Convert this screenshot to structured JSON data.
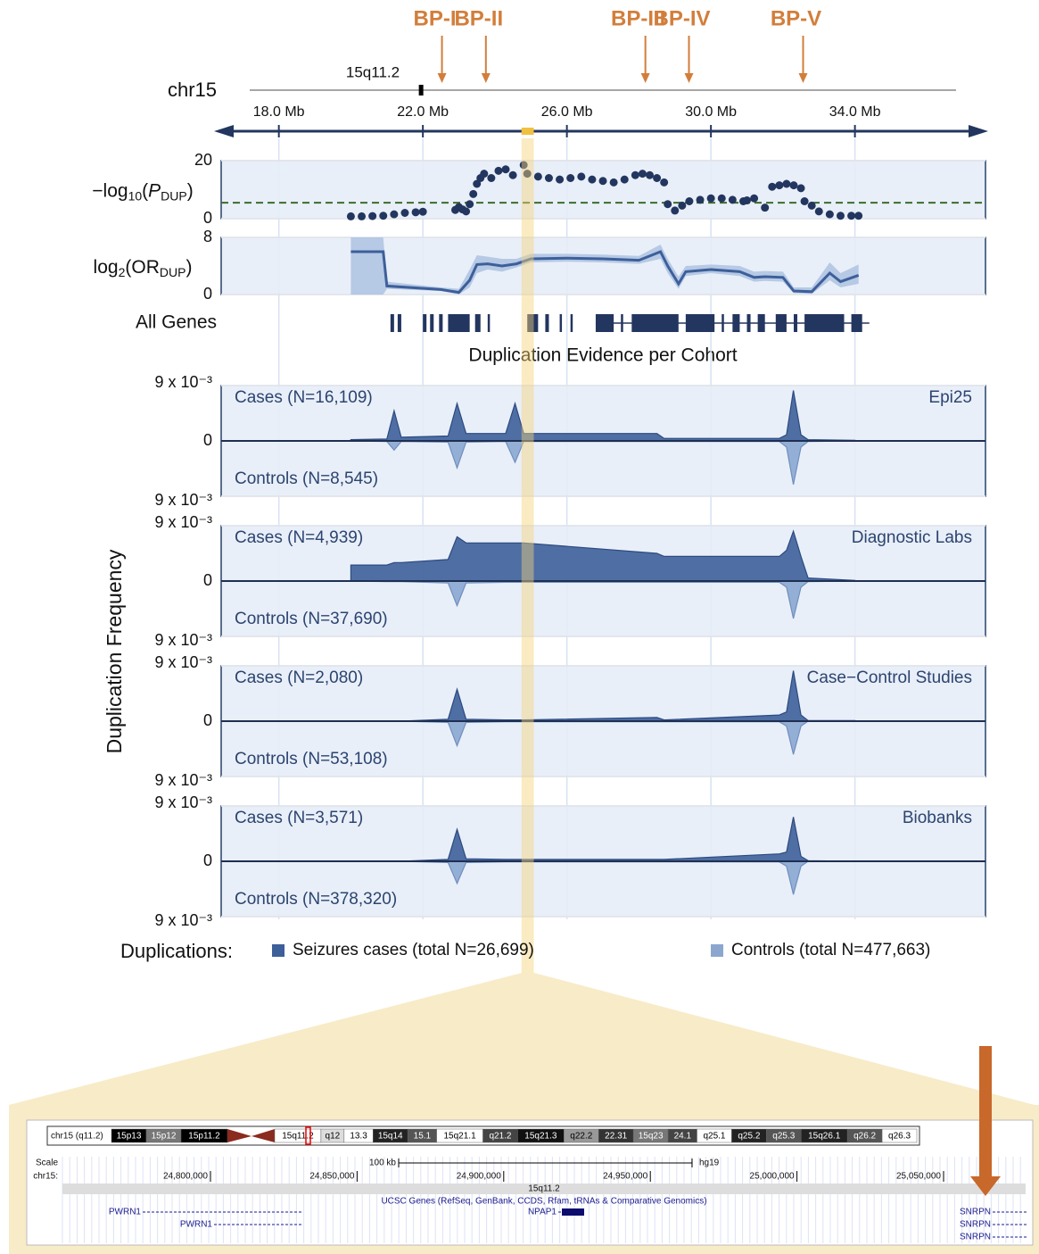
{
  "genome_axis": {
    "chrom": "chr15",
    "band": "15q11.2",
    "centromere": 21.95,
    "xlim": [
      16.2,
      37.7
    ],
    "xticks": [
      {
        "value": 18,
        "label": "18.0 Mb"
      },
      {
        "value": 22,
        "label": "22.0 Mb"
      },
      {
        "value": 26,
        "label": "26.0 Mb"
      },
      {
        "value": 30,
        "label": "30.0 Mb"
      },
      {
        "value": 34,
        "label": "34.0 Mb"
      }
    ],
    "highlight": [
      24.74,
      25.08
    ],
    "color": "#23365f"
  },
  "breakpoints": {
    "color": "#d27e3b",
    "items": [
      {
        "label": "BP-I",
        "position": 22.53
      },
      {
        "label": "BP-II",
        "position": 23.75
      },
      {
        "label": "BP-III",
        "position": 28.18
      },
      {
        "label": "BP-IV",
        "position": 29.39
      },
      {
        "label": "BP-V",
        "position": 32.56
      }
    ]
  },
  "genes": {
    "label": "All Genes",
    "color": "#23365f",
    "intervals": [
      [
        21.1,
        21.2
      ],
      [
        21.3,
        21.4
      ],
      [
        22.0,
        22.1
      ],
      [
        22.2,
        22.3
      ],
      [
        22.45,
        22.55
      ],
      [
        22.7,
        23.3
      ],
      [
        23.45,
        23.6
      ],
      [
        23.8,
        23.85
      ],
      [
        24.9,
        25.2
      ],
      [
        25.4,
        25.5
      ],
      [
        25.8,
        25.85
      ],
      [
        26.1,
        26.15
      ],
      [
        26.8,
        27.3
      ],
      [
        27.5,
        27.55
      ],
      [
        27.8,
        29.1
      ],
      [
        29.3,
        30.1
      ],
      [
        30.3,
        30.35
      ],
      [
        30.6,
        30.8
      ],
      [
        31.0,
        31.1
      ],
      [
        31.3,
        31.5
      ],
      [
        31.8,
        32.1
      ],
      [
        32.3,
        32.4
      ],
      [
        32.6,
        33.7
      ],
      [
        33.9,
        34.2
      ]
    ]
  },
  "section_title": "Duplication Evidence per Cohort",
  "y_label": "Duplication Frequency",
  "legend": {
    "title": "Duplications:",
    "entries": [
      {
        "label": "Seizures cases (total N=26,699)",
        "color": "#3d5f9a"
      },
      {
        "label": "Controls (total N=477,663)",
        "color": "#8ba7d0"
      }
    ]
  },
  "chart_data": [
    {
      "type": "scatter",
      "y_label": [
        {
          "text": "−log"
        },
        {
          "text": "10",
          "sub": true
        },
        {
          "text": "("
        },
        {
          "text": "P",
          "italic": true
        },
        {
          "text": "DUP",
          "sub": true
        },
        {
          "text": ")"
        }
      ],
      "x": [
        20.0,
        20.3,
        20.6,
        20.9,
        21.2,
        21.5,
        21.8,
        22.0,
        22.9,
        23.0,
        23.1,
        23.2,
        23.3,
        23.4,
        23.5,
        23.6,
        23.7,
        23.9,
        24.1,
        24.3,
        24.5,
        24.8,
        24.9,
        25.2,
        25.5,
        25.8,
        26.1,
        26.4,
        26.7,
        27.0,
        27.3,
        27.6,
        27.9,
        28.1,
        28.3,
        28.5,
        28.7,
        28.8,
        29.0,
        29.2,
        29.4,
        29.7,
        30.0,
        30.3,
        30.6,
        30.9,
        31.0,
        31.2,
        31.5,
        31.7,
        31.9,
        32.1,
        32.3,
        32.5,
        32.6,
        32.8,
        33.0,
        33.3,
        33.6,
        33.9,
        34.1
      ],
      "values": [
        0.8,
        0.8,
        0.9,
        1.0,
        1.5,
        2.0,
        2.2,
        2.4,
        3.0,
        4.0,
        3.2,
        2.5,
        5.0,
        8.5,
        12.0,
        14.0,
        15.5,
        14.0,
        16.5,
        17.0,
        15.0,
        18.5,
        15.5,
        14.5,
        14.0,
        13.5,
        14.0,
        14.5,
        13.5,
        13.0,
        12.5,
        13.5,
        15.0,
        15.5,
        15.0,
        14.0,
        12.5,
        5.0,
        2.8,
        4.5,
        6.0,
        6.5,
        7.0,
        7.0,
        6.5,
        6.0,
        6.3,
        7.0,
        3.8,
        11.0,
        11.5,
        12.0,
        11.5,
        10.5,
        6.0,
        4.5,
        2.5,
        1.5,
        1.0,
        1.0,
        1.0
      ],
      "color": "#23365f",
      "threshold": 5.5,
      "threshold_color": "#3b6e2a",
      "ylim": [
        0,
        20
      ],
      "yticks": [
        0,
        20
      ]
    },
    {
      "type": "line",
      "y_label": [
        {
          "text": "log"
        },
        {
          "text": "2",
          "sub": true
        },
        {
          "text": "(OR"
        },
        {
          "text": "DUP",
          "sub": true
        },
        {
          "text": ")"
        }
      ],
      "x": [
        20.0,
        20.9,
        21.0,
        22.5,
        23.0,
        23.3,
        23.5,
        23.8,
        24.2,
        24.6,
        25.0,
        26.0,
        27.0,
        28.0,
        28.6,
        28.8,
        29.1,
        29.3,
        30.0,
        30.8,
        31.2,
        31.5,
        32.0,
        32.3,
        32.8,
        33.3,
        33.6,
        34.1
      ],
      "values": [
        6.0,
        6.0,
        1.2,
        0.7,
        0.3,
        2.0,
        4.2,
        4.3,
        4.0,
        4.3,
        5.0,
        5.1,
        5.0,
        4.8,
        6.0,
        4.0,
        1.5,
        3.2,
        3.5,
        3.2,
        2.4,
        2.5,
        2.4,
        0.5,
        0.4,
        3.0,
        1.8,
        2.7
      ],
      "lower": [
        0,
        0,
        0.8,
        0.5,
        0,
        1.0,
        3.0,
        3.5,
        3.2,
        3.8,
        4.5,
        4.6,
        4.5,
        4.3,
        5.0,
        3.0,
        0.8,
        2.6,
        3.0,
        2.6,
        1.8,
        1.9,
        1.8,
        0.2,
        0.1,
        2.0,
        1.0,
        1.5
      ],
      "upper": [
        8,
        8,
        1.8,
        1.0,
        0.8,
        3.5,
        5.5,
        5.3,
        5.0,
        5.0,
        5.7,
        5.7,
        5.6,
        5.4,
        7.0,
        5.0,
        2.5,
        4.0,
        4.2,
        4.0,
        3.2,
        3.3,
        3.2,
        1.0,
        1.0,
        4.5,
        3.0,
        4.2
      ],
      "color": "#3d5f9a",
      "band_color": "#a9bfe0",
      "ylim": [
        0,
        8
      ],
      "yticks": [
        0,
        8
      ]
    },
    {
      "type": "area",
      "title": "Epi25",
      "x": [
        20.0,
        21.0,
        21.2,
        21.4,
        22.7,
        22.95,
        23.2,
        24.3,
        24.56,
        24.8,
        28.5,
        28.7,
        31.9,
        32.1,
        32.29,
        32.5,
        32.7,
        34.0
      ],
      "series": [
        {
          "name": "Cases (N=16,109)",
          "color": "#3d5f9a",
          "direction": "up",
          "values": [
            0.0002,
            0.0003,
            0.0049,
            0.0006,
            0.0008,
            0.0061,
            0.0012,
            0.0012,
            0.0061,
            0.0012,
            0.0012,
            0.0004,
            0.0004,
            0.001,
            0.0082,
            0.001,
            0.0002,
            0.0001
          ]
        },
        {
          "name": "Controls (N=8,545)",
          "color": "#8ba7d0",
          "direction": "down",
          "values": [
            0,
            0.0001,
            0.0015,
            0.0001,
            0.0002,
            0.0044,
            0.0002,
            0.0001,
            0.0035,
            0.0001,
            0.0001,
            0.0001,
            0.0001,
            0.001,
            0.0071,
            0.001,
            0.0001,
            0
          ]
        }
      ],
      "ylim": [
        -0.009,
        0.009
      ],
      "yticks": [
        {
          "value": 0.009,
          "label": "9 x 10⁻³"
        },
        0,
        {
          "value": -0.009,
          "label": "9 x 10⁻³"
        }
      ]
    },
    {
      "type": "area",
      "title": "Diagnostic Labs",
      "x": [
        20.0,
        21.0,
        21.2,
        21.4,
        22.7,
        22.95,
        23.2,
        24.3,
        24.56,
        24.8,
        28.5,
        28.7,
        31.9,
        32.1,
        32.29,
        32.5,
        32.7,
        34.0
      ],
      "series": [
        {
          "name": "Cases (N=4,939)",
          "color": "#3d5f9a",
          "direction": "up",
          "values": [
            0.0026,
            0.0026,
            0.003,
            0.003,
            0.0035,
            0.0072,
            0.0062,
            0.0062,
            0.0062,
            0.0062,
            0.0045,
            0.004,
            0.004,
            0.005,
            0.0081,
            0.004,
            0.0005,
            0.0001
          ]
        },
        {
          "name": "Controls (N=37,690)",
          "color": "#8ba7d0",
          "direction": "down",
          "values": [
            0,
            0.0001,
            0.0001,
            0.0001,
            0.0003,
            0.004,
            0.0003,
            0.0002,
            0.0002,
            0.0002,
            0.0002,
            0.0002,
            0.0002,
            0.001,
            0.0061,
            0.001,
            0.0001,
            0
          ]
        }
      ],
      "ylim": [
        -0.009,
        0.009
      ],
      "yticks": [
        {
          "value": 0.009,
          "label": "9 x 10⁻³"
        },
        0,
        {
          "value": -0.009,
          "label": "9 x 10⁻³"
        }
      ]
    },
    {
      "type": "area",
      "title": "Case−Control Studies",
      "x": [
        20.0,
        21.0,
        21.2,
        21.4,
        22.7,
        22.95,
        23.2,
        24.3,
        24.56,
        24.8,
        28.5,
        28.7,
        31.9,
        32.1,
        32.29,
        32.5,
        32.7,
        34.0
      ],
      "series": [
        {
          "name": "Cases (N=2,080)",
          "color": "#3d5f9a",
          "direction": "up",
          "values": [
            0,
            0,
            0,
            0,
            0.0003,
            0.0052,
            0.0003,
            0.0002,
            0.0002,
            0.0002,
            0.0006,
            0.0002,
            0.001,
            0.0015,
            0.0082,
            0.001,
            0.0001,
            0.0001
          ]
        },
        {
          "name": "Controls (N=53,108)",
          "color": "#8ba7d0",
          "direction": "down",
          "values": [
            0,
            0,
            0,
            0,
            0.0002,
            0.004,
            0.0002,
            0.0001,
            0.0001,
            0.0001,
            0.0001,
            0.0001,
            0.0001,
            0.0008,
            0.0054,
            0.0008,
            0,
            0
          ]
        }
      ],
      "ylim": [
        -0.009,
        0.009
      ],
      "yticks": [
        {
          "value": 0.009,
          "label": "9 x 10⁻³"
        },
        0,
        {
          "value": -0.009,
          "label": "9 x 10⁻³"
        }
      ]
    },
    {
      "type": "area",
      "title": "Biobanks",
      "x": [
        20.0,
        21.0,
        21.2,
        21.4,
        22.7,
        22.95,
        23.2,
        24.3,
        24.56,
        24.8,
        28.5,
        28.7,
        31.9,
        32.1,
        32.29,
        32.5,
        32.7,
        34.0
      ],
      "series": [
        {
          "name": "Cases (N=3,571)",
          "color": "#3d5f9a",
          "direction": "up",
          "values": [
            0,
            0,
            0,
            0,
            0.0003,
            0.0052,
            0.0004,
            0.0003,
            0.0003,
            0.0003,
            0.0003,
            0.0003,
            0.0012,
            0.0015,
            0.0072,
            0.0008,
            0.0001,
            0
          ]
        },
        {
          "name": "Controls (N=378,320)",
          "color": "#8ba7d0",
          "direction": "down",
          "values": [
            0,
            0,
            0,
            0,
            0.0002,
            0.0036,
            0.0002,
            0.0001,
            0.0001,
            0.0001,
            0.0001,
            0.0001,
            0.0001,
            0.0008,
            0.0054,
            0.0008,
            0,
            0
          ]
        }
      ],
      "ylim": [
        -0.009,
        0.009
      ],
      "yticks": [
        {
          "value": 0.009,
          "label": "9 x 10⁻³"
        },
        0,
        {
          "value": -0.009,
          "label": "9 x 10⁻³"
        }
      ]
    }
  ],
  "browser": {
    "ideogram_label": "chr15 (q11.2)",
    "p_bands": [
      {
        "label": "15p13",
        "fill": "#000000"
      },
      {
        "label": "15p12",
        "fill": "#777777"
      },
      {
        "label": "15p11.2",
        "fill": "#000000"
      }
    ],
    "q_bands": [
      {
        "label": "15q11.2",
        "fill": "#ffffff"
      },
      {
        "label": "q12",
        "fill": "#dddddd"
      },
      {
        "label": "13.3",
        "fill": "#ffffff"
      },
      {
        "label": "15q14",
        "fill": "#222222"
      },
      {
        "label": "15.1",
        "fill": "#555555"
      },
      {
        "label": "15q21.1",
        "fill": "#ffffff"
      },
      {
        "label": "q21.2",
        "fill": "#444444"
      },
      {
        "label": "15q21.3",
        "fill": "#111111"
      },
      {
        "label": "q22.2",
        "fill": "#999999"
      },
      {
        "label": "22.31",
        "fill": "#333333"
      },
      {
        "label": "15q23",
        "fill": "#777777"
      },
      {
        "label": "24.1",
        "fill": "#444444"
      },
      {
        "label": "q25.1",
        "fill": "#ffffff"
      },
      {
        "label": "q25.2",
        "fill": "#222222"
      },
      {
        "label": "q25.3",
        "fill": "#555555"
      },
      {
        "label": "15q26.1",
        "fill": "#222222"
      },
      {
        "label": "q26.2",
        "fill": "#555555"
      },
      {
        "label": "q26.3",
        "fill": "#ffffff"
      }
    ],
    "scale_label": "Scale",
    "chrom_label": "chr15:",
    "scale_bar": "100 kb",
    "assembly": "hg19",
    "positions": [
      "24,800,000",
      "24,850,000",
      "24,900,000",
      "24,950,000",
      "25,000,000",
      "25,050,000"
    ],
    "band_label": "15q11.2",
    "track_title": "UCSC Genes (RefSeq, GenBank, CCDS, Rfam, tRNAs & Comparative Genomics)",
    "genes": [
      "PWRN1",
      "PWRN1",
      "NPAP1",
      "SNRPN",
      "SNRPN",
      "SNRPN"
    ]
  }
}
